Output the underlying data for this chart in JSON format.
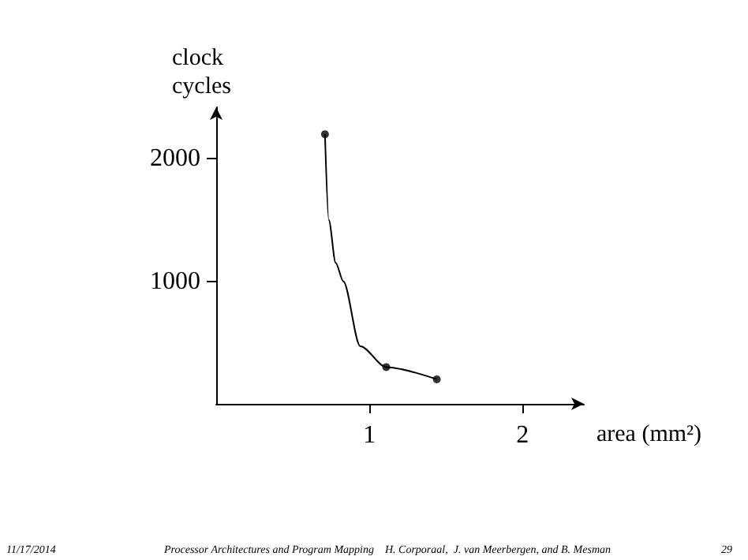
{
  "chart_data": {
    "type": "line",
    "xlabel": "area (mm²)",
    "ylabel": "clock cycles",
    "xlim": [
      0,
      2.4
    ],
    "ylim": [
      0,
      2420
    ],
    "xticks": [
      1,
      2
    ],
    "yticks": [
      1000,
      2000
    ],
    "grid": false,
    "series": [
      {
        "color": "#000000",
        "marker": "none",
        "x": [
          0.71,
          0.735,
          0.78,
          0.83,
          0.94,
          1.11,
          1.44
        ],
        "values": [
          2200,
          1500,
          1150,
          1000,
          470,
          300,
          200
        ]
      },
      {
        "type": "scatter",
        "color": "#000000",
        "marker": "circle",
        "x": [
          0.71,
          1.11,
          1.44
        ],
        "values": [
          2200,
          300,
          200
        ]
      }
    ],
    "annotations": [
      "11/17/2014",
      "Processor Architectures and Program Mapping    H. Corporaal,  J. van Meerbergen, and B. Mesman",
      "29"
    ]
  }
}
